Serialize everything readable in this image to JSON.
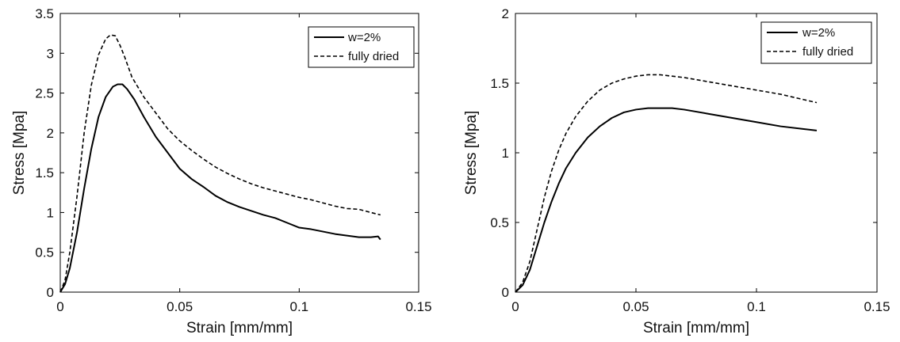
{
  "chart_data": [
    {
      "type": "line",
      "title": "",
      "xlabel": "Strain [mm/mm]",
      "ylabel": "Stress [Mpa]",
      "xlim": [
        0,
        0.15
      ],
      "ylim": [
        0,
        3.5
      ],
      "xticks": [
        "0",
        "0.05",
        "0.1",
        "0.15"
      ],
      "yticks": [
        "0",
        "0.5",
        "1",
        "1.5",
        "2",
        "2.5",
        "3",
        "3.5"
      ],
      "grid": false,
      "legend_position": "top-right",
      "series": [
        {
          "name": "w=2%",
          "line_style": "solid",
          "x": [
            0,
            0.002,
            0.004,
            0.007,
            0.01,
            0.013,
            0.016,
            0.019,
            0.022,
            0.024,
            0.026,
            0.028,
            0.031,
            0.035,
            0.04,
            0.045,
            0.05,
            0.055,
            0.06,
            0.065,
            0.07,
            0.075,
            0.08,
            0.085,
            0.09,
            0.095,
            0.1,
            0.105,
            0.11,
            0.115,
            0.12,
            0.125,
            0.13,
            0.133,
            0.134
          ],
          "y": [
            0,
            0.1,
            0.3,
            0.75,
            1.3,
            1.8,
            2.2,
            2.45,
            2.58,
            2.61,
            2.61,
            2.55,
            2.42,
            2.2,
            1.95,
            1.75,
            1.55,
            1.42,
            1.32,
            1.21,
            1.13,
            1.07,
            1.02,
            0.97,
            0.93,
            0.87,
            0.81,
            0.79,
            0.76,
            0.73,
            0.71,
            0.69,
            0.69,
            0.7,
            0.66
          ]
        },
        {
          "name": "fully dried",
          "line_style": "dashed",
          "x": [
            0,
            0.002,
            0.004,
            0.007,
            0.01,
            0.013,
            0.016,
            0.019,
            0.021,
            0.023,
            0.025,
            0.027,
            0.03,
            0.035,
            0.04,
            0.045,
            0.05,
            0.055,
            0.06,
            0.065,
            0.07,
            0.075,
            0.08,
            0.085,
            0.09,
            0.095,
            0.1,
            0.105,
            0.11,
            0.115,
            0.12,
            0.125,
            0.13,
            0.134
          ],
          "y": [
            0,
            0.15,
            0.5,
            1.2,
            2.0,
            2.6,
            2.98,
            3.18,
            3.23,
            3.22,
            3.1,
            2.95,
            2.7,
            2.45,
            2.25,
            2.05,
            1.9,
            1.78,
            1.67,
            1.57,
            1.49,
            1.42,
            1.36,
            1.31,
            1.27,
            1.23,
            1.19,
            1.16,
            1.12,
            1.08,
            1.05,
            1.04,
            1.0,
            0.97
          ]
        }
      ]
    },
    {
      "type": "line",
      "title": "",
      "xlabel": "Strain [mm/mm]",
      "ylabel": "Stress [Mpa]",
      "xlim": [
        0,
        0.15
      ],
      "ylim": [
        0,
        2
      ],
      "xticks": [
        "0",
        "0.05",
        "0.1",
        "0.15"
      ],
      "yticks": [
        "0",
        "0.5",
        "1",
        "1.5",
        "2"
      ],
      "grid": false,
      "legend_position": "top-right",
      "series": [
        {
          "name": "w=2%",
          "line_style": "solid",
          "x": [
            0,
            0.003,
            0.006,
            0.009,
            0.012,
            0.015,
            0.018,
            0.021,
            0.025,
            0.03,
            0.035,
            0.04,
            0.045,
            0.05,
            0.055,
            0.06,
            0.065,
            0.07,
            0.08,
            0.09,
            0.1,
            0.11,
            0.12,
            0.125
          ],
          "y": [
            0,
            0.05,
            0.16,
            0.33,
            0.5,
            0.65,
            0.78,
            0.89,
            1.0,
            1.11,
            1.19,
            1.25,
            1.29,
            1.31,
            1.32,
            1.32,
            1.32,
            1.31,
            1.28,
            1.25,
            1.22,
            1.19,
            1.17,
            1.16
          ]
        },
        {
          "name": "fully dried",
          "line_style": "dashed",
          "x": [
            0,
            0.003,
            0.006,
            0.009,
            0.012,
            0.015,
            0.018,
            0.021,
            0.025,
            0.03,
            0.035,
            0.04,
            0.045,
            0.05,
            0.055,
            0.06,
            0.065,
            0.07,
            0.08,
            0.09,
            0.1,
            0.11,
            0.12,
            0.125
          ],
          "y": [
            0,
            0.07,
            0.22,
            0.45,
            0.68,
            0.87,
            1.02,
            1.14,
            1.26,
            1.37,
            1.45,
            1.5,
            1.53,
            1.55,
            1.56,
            1.56,
            1.55,
            1.54,
            1.51,
            1.48,
            1.45,
            1.42,
            1.38,
            1.36
          ]
        }
      ]
    }
  ]
}
